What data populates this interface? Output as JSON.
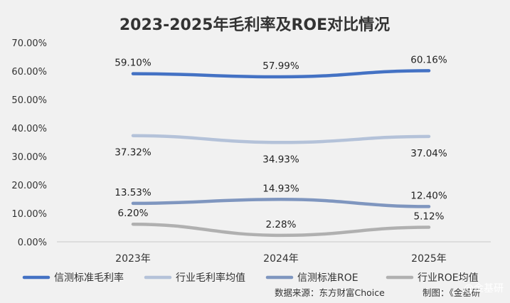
{
  "chart_data": {
    "type": "line",
    "title": "2023-2025年毛利率及ROE对比情况",
    "categories": [
      "2023年",
      "2024年",
      "2025年"
    ],
    "ylim": [
      0,
      70
    ],
    "yticks": [
      "0.00%",
      "10.00%",
      "20.00%",
      "30.00%",
      "40.00%",
      "50.00%",
      "60.00%",
      "70.00%"
    ],
    "grid": false,
    "legend_position": "bottom",
    "series": [
      {
        "name": "信测标准毛利率",
        "values": [
          59.1,
          57.99,
          60.16
        ],
        "labels": [
          "59.10%",
          "57.99%",
          "60.16%"
        ],
        "color": "#4472c4",
        "label_position": "above"
      },
      {
        "name": "行业毛利率均值",
        "values": [
          37.32,
          34.93,
          37.04
        ],
        "labels": [
          "37.32%",
          "34.93%",
          "37.04%"
        ],
        "color": "#b4c2d9",
        "label_position": "below"
      },
      {
        "name": "信测标准ROE",
        "values": [
          13.53,
          14.93,
          12.4
        ],
        "labels": [
          "13.53%",
          "14.93%",
          "12.40%"
        ],
        "color": "#7f96bf",
        "label_position": "above"
      },
      {
        "name": "行业ROE均值",
        "values": [
          6.2,
          2.28,
          5.12
        ],
        "labels": [
          "6.20%",
          "2.28%",
          "5.12%"
        ],
        "color": "#b0b0b0",
        "label_position": "above"
      }
    ]
  },
  "footer": {
    "source": "数据来源：东方财富Choice",
    "made_by": "制图：《金基研",
    "watermark": "@金基研"
  }
}
